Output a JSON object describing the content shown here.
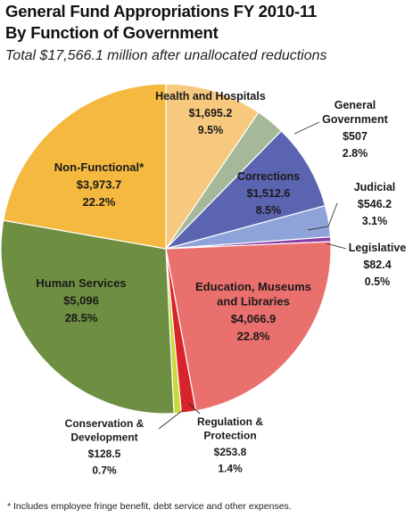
{
  "title_line1": "General Fund Appropriations FY 2010-11",
  "title_line2": "By Function of Government",
  "subtitle": "Total $17,566.1 million after unallocated reductions",
  "footnote": "* Includes employee fringe benefit, debt service and other expenses.",
  "chart_data": {
    "type": "pie",
    "title": "General Fund Appropriations FY 2010-11 By Function of Government",
    "subtitle": "Total $17,566.1 million after unallocated reductions",
    "slices": [
      {
        "name": "Health and Hospitals",
        "display_value": "$1,695.2",
        "value": 1695.2,
        "percent_label": "9.5%",
        "percent": 9.5,
        "color": "#f7c97e"
      },
      {
        "name": "General Government",
        "display_value": "$507",
        "value": 507,
        "percent_label": "2.8%",
        "percent": 2.8,
        "color": "#a5b89a"
      },
      {
        "name": "Corrections",
        "display_value": "$1,512.6",
        "value": 1512.6,
        "percent_label": "8.5%",
        "percent": 8.5,
        "color": "#5b64b0"
      },
      {
        "name": "Judicial",
        "display_value": "$546.2",
        "value": 546.2,
        "percent_label": "3.1%",
        "percent": 3.1,
        "color": "#8ea3d9"
      },
      {
        "name": "Legislative",
        "display_value": "$82.4",
        "value": 82.4,
        "percent_label": "0.5%",
        "percent": 0.5,
        "color": "#8a3fa6"
      },
      {
        "name": "Education, Museums and Libraries",
        "display_value": "$4,066.9",
        "value": 4066.9,
        "percent_label": "22.8%",
        "percent": 22.8,
        "color": "#e9706d"
      },
      {
        "name": "Regulation & Protection",
        "display_value": "$253.8",
        "value": 253.8,
        "percent_label": "1.4%",
        "percent": 1.4,
        "color": "#d9232b"
      },
      {
        "name": "Conservation & Development",
        "display_value": "$128.5",
        "value": 128.5,
        "percent_label": "0.7%",
        "percent": 0.7,
        "color": "#c9d93a"
      },
      {
        "name": "Human Services",
        "display_value": "$5,096",
        "value": 5096,
        "percent_label": "28.5%",
        "percent": 28.5,
        "color": "#6e8f41"
      },
      {
        "name": "Non-Functional*",
        "display_value": "$3,973.7",
        "value": 3973.7,
        "percent_label": "22.2%",
        "percent": 22.2,
        "color": "#f5b93f"
      }
    ]
  }
}
